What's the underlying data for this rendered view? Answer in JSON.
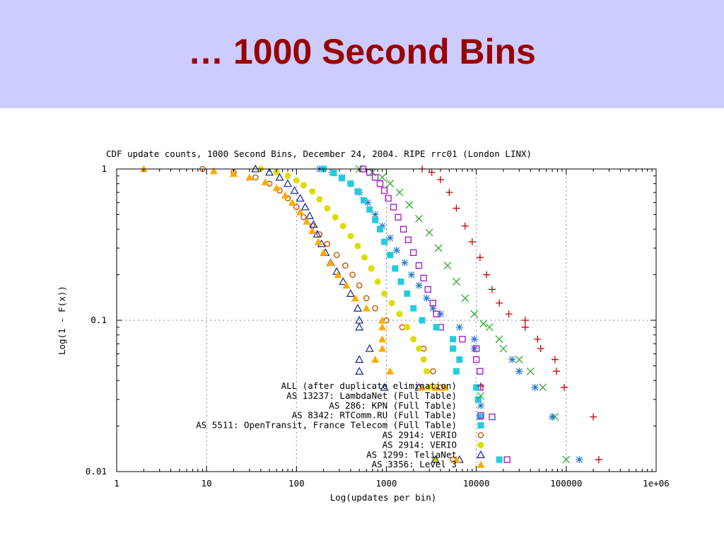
{
  "slide": {
    "title": "… 1000 Second Bins"
  },
  "chart_data": {
    "type": "scatter",
    "title": "CDF update counts, 1000 Second Bins, December 24, 2004.  RIPE rrc01 (London LINX)",
    "xlabel": "Log(updates per bin)",
    "ylabel": "Log(1 - F(x))",
    "x_scale": "log",
    "y_scale": "log",
    "xlim": [
      1,
      1000000
    ],
    "ylim": [
      0.01,
      1
    ],
    "x_ticks": [
      {
        "v": 1,
        "label": "1"
      },
      {
        "v": 10,
        "label": "10"
      },
      {
        "v": 100,
        "label": "100"
      },
      {
        "v": 1000,
        "label": "1000"
      },
      {
        "v": 10000,
        "label": "10000"
      },
      {
        "v": 100000,
        "label": "100000"
      },
      {
        "v": 1000000,
        "label": "1e+06"
      }
    ],
    "y_ticks": [
      {
        "v": 1,
        "label": "1"
      },
      {
        "v": 0.1,
        "label": "0.1"
      },
      {
        "v": 0.01,
        "label": "0.01"
      }
    ],
    "grid": true,
    "legend_position": "bottom-center",
    "series": [
      {
        "name": "ALL (after duplicate elimination)",
        "marker": "plus",
        "color": "#cc0000",
        "points": [
          [
            2500,
            1
          ],
          [
            3200,
            0.95
          ],
          [
            4000,
            0.85
          ],
          [
            5000,
            0.7
          ],
          [
            6000,
            0.55
          ],
          [
            7500,
            0.42
          ],
          [
            9000,
            0.33
          ],
          [
            11000,
            0.26
          ],
          [
            13000,
            0.2
          ],
          [
            15000,
            0.16
          ],
          [
            18000,
            0.13
          ],
          [
            23000,
            0.11
          ],
          [
            35000,
            0.1
          ],
          [
            35000,
            0.09
          ],
          [
            48000,
            0.075
          ],
          [
            52000,
            0.065
          ],
          [
            75000,
            0.055
          ],
          [
            78000,
            0.046
          ],
          [
            95000,
            0.036
          ],
          [
            200000,
            0.023
          ],
          [
            230000,
            0.012
          ]
        ]
      },
      {
        "name": "AS 13237: LambdaNet (Full Table)",
        "marker": "cross",
        "color": "#33aa33",
        "points": [
          [
            500,
            1
          ],
          [
            700,
            0.95
          ],
          [
            900,
            0.88
          ],
          [
            1100,
            0.8
          ],
          [
            1400,
            0.7
          ],
          [
            1800,
            0.58
          ],
          [
            2300,
            0.47
          ],
          [
            3000,
            0.38
          ],
          [
            3800,
            0.3
          ],
          [
            4800,
            0.23
          ],
          [
            6000,
            0.18
          ],
          [
            7500,
            0.14
          ],
          [
            9500,
            0.11
          ],
          [
            12000,
            0.095
          ],
          [
            14000,
            0.09
          ],
          [
            18000,
            0.075
          ],
          [
            20000,
            0.065
          ],
          [
            30000,
            0.055
          ],
          [
            40000,
            0.046
          ],
          [
            55000,
            0.036
          ],
          [
            75000,
            0.023
          ],
          [
            100000,
            0.012
          ]
        ]
      },
      {
        "name": "AS 286: KPN (Full Table)",
        "marker": "star",
        "color": "#2277cc",
        "points": [
          [
            180,
            1
          ],
          [
            250,
            0.95
          ],
          [
            320,
            0.88
          ],
          [
            400,
            0.8
          ],
          [
            500,
            0.7
          ],
          [
            620,
            0.6
          ],
          [
            750,
            0.5
          ],
          [
            900,
            0.42
          ],
          [
            1100,
            0.35
          ],
          [
            1300,
            0.29
          ],
          [
            1600,
            0.24
          ],
          [
            1900,
            0.2
          ],
          [
            2300,
            0.17
          ],
          [
            2800,
            0.14
          ],
          [
            3300,
            0.12
          ],
          [
            4000,
            0.11
          ],
          [
            6500,
            0.09
          ],
          [
            9500,
            0.075
          ],
          [
            9500,
            0.065
          ],
          [
            25000,
            0.055
          ],
          [
            30000,
            0.046
          ],
          [
            45000,
            0.036
          ],
          [
            70000,
            0.023
          ],
          [
            140000,
            0.012
          ]
        ]
      },
      {
        "name": "AS 8342: RTComm.RU (Full Table)",
        "marker": "square",
        "color": "#aa22cc",
        "points": [
          [
            550,
            1
          ],
          [
            650,
            0.95
          ],
          [
            750,
            0.88
          ],
          [
            850,
            0.8
          ],
          [
            950,
            0.72
          ],
          [
            1050,
            0.64
          ],
          [
            1200,
            0.56
          ],
          [
            1350,
            0.48
          ],
          [
            1550,
            0.4
          ],
          [
            1750,
            0.34
          ],
          [
            2000,
            0.28
          ],
          [
            2300,
            0.23
          ],
          [
            2600,
            0.19
          ],
          [
            2900,
            0.16
          ],
          [
            3300,
            0.13
          ],
          [
            3600,
            0.11
          ],
          [
            4000,
            0.09
          ],
          [
            7000,
            0.075
          ],
          [
            10000,
            0.065
          ],
          [
            10000,
            0.055
          ],
          [
            11000,
            0.046
          ],
          [
            11000,
            0.036
          ],
          [
            15000,
            0.023
          ],
          [
            22000,
            0.012
          ]
        ]
      },
      {
        "name": "AS 5511: OpenTransit, France Telecom (Full Table)",
        "marker": "filled-square",
        "color": "#22ccdd",
        "points": [
          [
            200,
            1
          ],
          [
            260,
            0.94
          ],
          [
            320,
            0.87
          ],
          [
            400,
            0.8
          ],
          [
            480,
            0.71
          ],
          [
            560,
            0.62
          ],
          [
            650,
            0.54
          ],
          [
            750,
            0.46
          ],
          [
            850,
            0.4
          ],
          [
            950,
            0.33
          ],
          [
            1100,
            0.27
          ],
          [
            1250,
            0.22
          ],
          [
            1450,
            0.18
          ],
          [
            1700,
            0.15
          ],
          [
            2000,
            0.12
          ],
          [
            2500,
            0.1
          ],
          [
            3600,
            0.09
          ],
          [
            5500,
            0.075
          ],
          [
            5500,
            0.065
          ],
          [
            6500,
            0.055
          ],
          [
            6000,
            0.046
          ],
          [
            10000,
            0.036
          ],
          [
            10500,
            0.03
          ],
          [
            11000,
            0.023
          ],
          [
            18000,
            0.012
          ]
        ]
      },
      {
        "name": "AS 2914: VERIO",
        "marker": "circle",
        "color": "#cc5500",
        "points": [
          [
            9,
            1
          ],
          [
            20,
            0.95
          ],
          [
            35,
            0.88
          ],
          [
            50,
            0.8
          ],
          [
            65,
            0.72
          ],
          [
            80,
            0.64
          ],
          [
            100,
            0.56
          ],
          [
            120,
            0.48
          ],
          [
            150,
            0.42
          ],
          [
            180,
            0.37
          ],
          [
            220,
            0.32
          ],
          [
            280,
            0.27
          ],
          [
            350,
            0.23
          ],
          [
            420,
            0.2
          ],
          [
            500,
            0.17
          ],
          [
            600,
            0.14
          ],
          [
            750,
            0.12
          ],
          [
            1000,
            0.1
          ],
          [
            1500,
            0.09
          ],
          [
            2000,
            0.075
          ],
          [
            2600,
            0.065
          ],
          [
            3300,
            0.046
          ],
          [
            4000,
            0.036
          ],
          [
            5500,
            0.012
          ]
        ]
      },
      {
        "name": "AS 2914: VERIO",
        "marker": "filled-circle",
        "color": "#dddd00",
        "points": [
          [
            40,
            1
          ],
          [
            60,
            0.95
          ],
          [
            80,
            0.9
          ],
          [
            100,
            0.84
          ],
          [
            120,
            0.78
          ],
          [
            150,
            0.71
          ],
          [
            180,
            0.63
          ],
          [
            220,
            0.55
          ],
          [
            270,
            0.48
          ],
          [
            330,
            0.42
          ],
          [
            400,
            0.36
          ],
          [
            480,
            0.31
          ],
          [
            570,
            0.26
          ],
          [
            680,
            0.22
          ],
          [
            800,
            0.18
          ],
          [
            950,
            0.15
          ],
          [
            1150,
            0.13
          ],
          [
            1400,
            0.11
          ],
          [
            1700,
            0.09
          ],
          [
            2000,
            0.075
          ],
          [
            2300,
            0.065
          ],
          [
            2600,
            0.055
          ],
          [
            2800,
            0.046
          ],
          [
            3000,
            0.036
          ],
          [
            3500,
            0.012
          ]
        ]
      },
      {
        "name": "AS 1299: TeliaNet",
        "marker": "triangle",
        "color": "#223399",
        "points": [
          [
            35,
            1
          ],
          [
            50,
            0.95
          ],
          [
            65,
            0.88
          ],
          [
            80,
            0.8
          ],
          [
            95,
            0.72
          ],
          [
            110,
            0.64
          ],
          [
            125,
            0.56
          ],
          [
            140,
            0.49
          ],
          [
            155,
            0.43
          ],
          [
            170,
            0.37
          ],
          [
            190,
            0.32
          ],
          [
            210,
            0.28
          ],
          [
            240,
            0.24
          ],
          [
            280,
            0.21
          ],
          [
            330,
            0.18
          ],
          [
            400,
            0.15
          ],
          [
            480,
            0.12
          ],
          [
            500,
            0.1
          ],
          [
            500,
            0.09
          ],
          [
            650,
            0.065
          ],
          [
            500,
            0.055
          ],
          [
            500,
            0.046
          ],
          [
            950,
            0.036
          ],
          [
            2300,
            0.036
          ],
          [
            3500,
            0.012
          ],
          [
            6500,
            0.012
          ]
        ]
      },
      {
        "name": "AS 3356: Level 3",
        "marker": "filled-triangle",
        "color": "#ffaa00",
        "points": [
          [
            2,
            1
          ],
          [
            12,
            0.97
          ],
          [
            20,
            0.93
          ],
          [
            30,
            0.88
          ],
          [
            45,
            0.82
          ],
          [
            60,
            0.75
          ],
          [
            75,
            0.67
          ],
          [
            90,
            0.6
          ],
          [
            110,
            0.52
          ],
          [
            130,
            0.45
          ],
          [
            150,
            0.39
          ],
          [
            175,
            0.33
          ],
          [
            200,
            0.28
          ],
          [
            240,
            0.24
          ],
          [
            290,
            0.2
          ],
          [
            360,
            0.17
          ],
          [
            450,
            0.14
          ],
          [
            600,
            0.12
          ],
          [
            900,
            0.1
          ],
          [
            900,
            0.09
          ],
          [
            900,
            0.075
          ],
          [
            900,
            0.065
          ],
          [
            750,
            0.055
          ],
          [
            1100,
            0.046
          ],
          [
            2500,
            0.036
          ],
          [
            3500,
            0.036
          ],
          [
            4500,
            0.036
          ],
          [
            6000,
            0.012
          ]
        ]
      }
    ]
  }
}
